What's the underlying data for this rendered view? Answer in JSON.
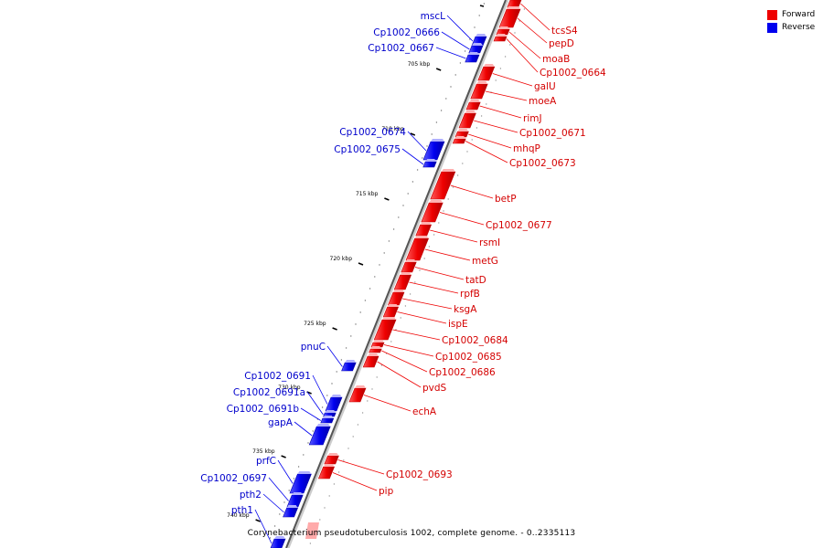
{
  "legend": {
    "forward_label": "Forward",
    "reverse_label": "Reverse",
    "forward_color": "#ee0000",
    "reverse_color": "#0000ee"
  },
  "caption": "Corynebacterium pseudotuberculosis 1002, complete genome. - 0..2335113",
  "colors": {
    "forward": "#ee0000",
    "reverse": "#0000ee",
    "axis": "#555555",
    "tick": "#000000"
  },
  "ticks": [
    {
      "label": "705 kbp"
    },
    {
      "label": "710 kbp"
    },
    {
      "label": "715 kbp"
    },
    {
      "label": "720 kbp"
    },
    {
      "label": "725 kbp"
    },
    {
      "label": "730 kbp"
    },
    {
      "label": "735 kbp"
    },
    {
      "label": "740 kbp"
    }
  ],
  "forward_genes": [
    {
      "name": "tcsS4"
    },
    {
      "name": "pepD"
    },
    {
      "name": "moaB"
    },
    {
      "name": "Cp1002_0664"
    },
    {
      "name": "galU"
    },
    {
      "name": "moeA"
    },
    {
      "name": "rimJ"
    },
    {
      "name": "Cp1002_0671"
    },
    {
      "name": "mhqP"
    },
    {
      "name": "Cp1002_0673"
    },
    {
      "name": "betP"
    },
    {
      "name": "Cp1002_0677"
    },
    {
      "name": "rsmI"
    },
    {
      "name": "metG"
    },
    {
      "name": "tatD"
    },
    {
      "name": "rpfB"
    },
    {
      "name": "ksgA"
    },
    {
      "name": "ispE"
    },
    {
      "name": "Cp1002_0684"
    },
    {
      "name": "Cp1002_0685"
    },
    {
      "name": "Cp1002_0686"
    },
    {
      "name": "pvdS"
    },
    {
      "name": "echA"
    },
    {
      "name": "Cp1002_0693"
    },
    {
      "name": "pip"
    }
  ],
  "reverse_genes": [
    {
      "name": "mscL"
    },
    {
      "name": "Cp1002_0666"
    },
    {
      "name": "Cp1002_0667"
    },
    {
      "name": "Cp1002_0674"
    },
    {
      "name": "Cp1002_0675"
    },
    {
      "name": "pnuC"
    },
    {
      "name": "Cp1002_0691"
    },
    {
      "name": "Cp1002_0691a"
    },
    {
      "name": "Cp1002_0691b"
    },
    {
      "name": "gapA"
    },
    {
      "name": "prfC"
    },
    {
      "name": "Cp1002_0697"
    },
    {
      "name": "pth2"
    },
    {
      "name": "pth1"
    }
  ]
}
